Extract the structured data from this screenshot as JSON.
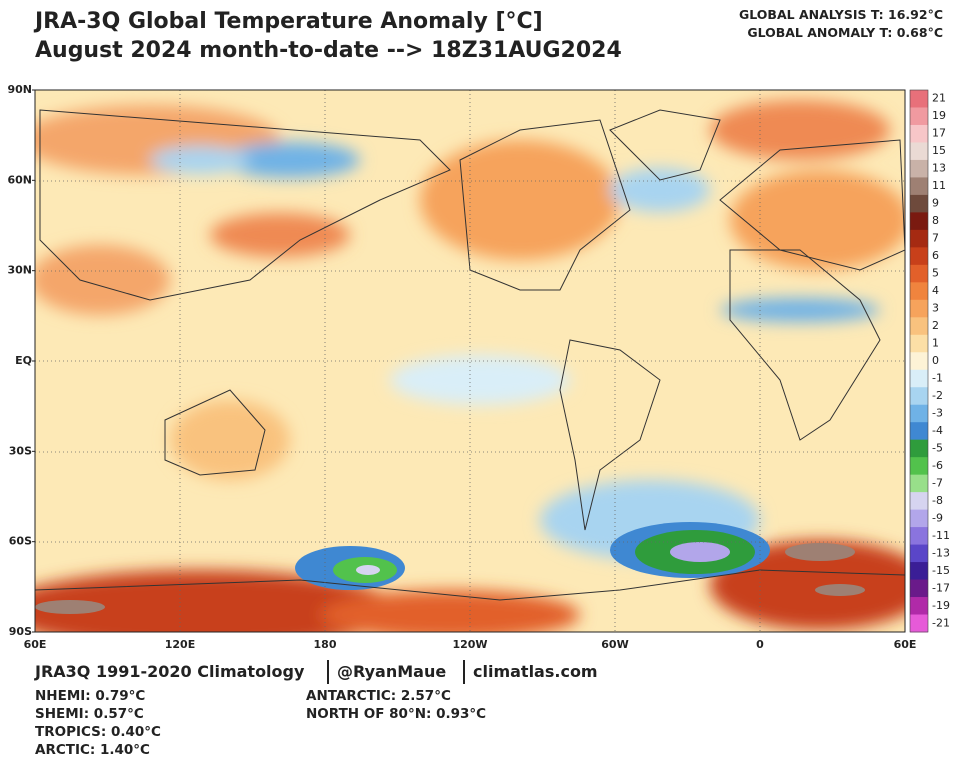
{
  "header": {
    "title_line1": "JRA-3Q Global Temperature Anomaly [°C]",
    "title_line2": "August 2024 month-to-date --> 18Z31AUG2024",
    "global_analysis": "GLOBAL ANALYSIS T: 16.92°C",
    "global_anomaly": "GLOBAL ANOMALY T: 0.68°C"
  },
  "map": {
    "lat_labels": [
      "90N",
      "60N",
      "30N",
      "EQ",
      "30S",
      "60S",
      "90S"
    ],
    "lon_labels": [
      "60E",
      "120E",
      "180",
      "120W",
      "60W",
      "0",
      "60E"
    ]
  },
  "colorbar": {
    "labels": [
      "21",
      "19",
      "17",
      "15",
      "13",
      "11",
      "9",
      "8",
      "7",
      "6",
      "5",
      "4",
      "3",
      "2",
      "1",
      "0",
      "-1",
      "-2",
      "-3",
      "-4",
      "-5",
      "-6",
      "-7",
      "-8",
      "-9",
      "-11",
      "-13",
      "-15",
      "-17",
      "-19",
      "-21"
    ],
    "colors": [
      "#e8707a",
      "#f09aa0",
      "#f7c6c8",
      "#eadad4",
      "#c9b2a8",
      "#9e8073",
      "#6e4a3c",
      "#7a1a10",
      "#a52a12",
      "#c8401a",
      "#e2602a",
      "#f0843e",
      "#f6a35c",
      "#f9c27e",
      "#fcdfa6",
      "#fdf3d6",
      "#d9eef8",
      "#a8d4f0",
      "#6fb2e6",
      "#3f88d2",
      "#2f9c3c",
      "#52c24c",
      "#98df8a",
      "#d6d4f0",
      "#b2a6ea",
      "#8a74de",
      "#5a46c8",
      "#3a1e96",
      "#6a1a8a",
      "#b02aa8",
      "#e65ad8"
    ]
  },
  "footer": {
    "credit_source": "JRA3Q 1991-2020 Climatology",
    "credit_handle": "@RyanMaue",
    "credit_site": "climatlas.com",
    "stats_left": [
      "NHEMI: 0.79°C",
      "SHEMI: 0.57°C",
      "TROPICS: 0.40°C",
      "ARCTIC: 1.40°C"
    ],
    "stats_right": [
      "ANTARCTIC: 2.57°C",
      "NORTH OF 80°N: 0.93°C"
    ]
  }
}
